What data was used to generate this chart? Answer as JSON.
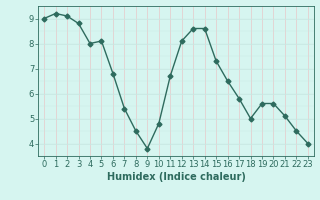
{
  "x": [
    0,
    1,
    2,
    3,
    4,
    5,
    6,
    7,
    8,
    9,
    10,
    11,
    12,
    13,
    14,
    15,
    16,
    17,
    18,
    19,
    20,
    21,
    22,
    23
  ],
  "y": [
    9.0,
    9.2,
    9.1,
    8.8,
    8.0,
    8.1,
    6.8,
    5.4,
    4.5,
    3.8,
    4.8,
    6.7,
    8.1,
    8.6,
    8.6,
    7.3,
    6.5,
    5.8,
    5.0,
    5.6,
    5.6,
    5.1,
    4.5,
    4.0
  ],
  "xlabel": "Humidex (Indice chaleur)",
  "ylabel": "",
  "xlim": [
    -0.5,
    23.5
  ],
  "ylim": [
    3.5,
    9.5
  ],
  "yticks": [
    4,
    5,
    6,
    7,
    8,
    9
  ],
  "xticks": [
    0,
    1,
    2,
    3,
    4,
    5,
    6,
    7,
    8,
    9,
    10,
    11,
    12,
    13,
    14,
    15,
    16,
    17,
    18,
    19,
    20,
    21,
    22,
    23
  ],
  "line_color": "#2e6b5e",
  "marker": "D",
  "marker_size": 2.5,
  "bg_color": "#d6f5f0",
  "grid_color_h": "#c8e8e2",
  "grid_color_v": "#e8c8c8",
  "axes_color": "#2e6b5e",
  "tick_label_color": "#2e6b5e",
  "label_color": "#2e6b5e",
  "font_size_ticks": 6,
  "font_size_label": 7
}
